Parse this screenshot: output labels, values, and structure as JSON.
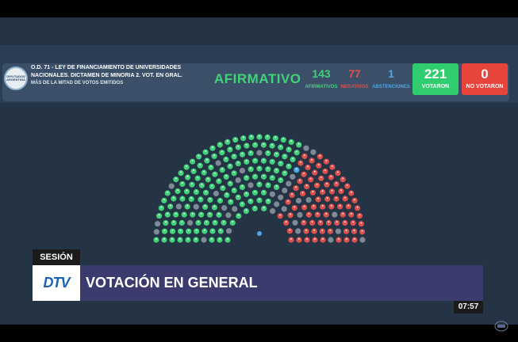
{
  "header": {
    "law_title": "O.D. 71 - LEY DE FINANCIAMIENTO DE UNIVERSIDADES NACIONALES. DICTAMEN DE MINORIA 2. VOT. EN GRAL.",
    "majority_label": "Más de la mitad de votos emitidos",
    "logo_text": "DIPUTADOS ARGENTINA"
  },
  "result": {
    "text": "AFIRMATIVO"
  },
  "counts": {
    "afirmativos": {
      "value": "143",
      "label": "AFIRMATIVOS"
    },
    "negativos": {
      "value": "77",
      "label": "NEGATIVOS"
    },
    "abstenciones": {
      "value": "1",
      "label": "ABSTENCIONES"
    },
    "votaron": {
      "value": "221",
      "label": "VOTARON"
    },
    "no_votaron": {
      "value": "0",
      "label": "NO VOTARON"
    }
  },
  "seats": {
    "total": 257,
    "afirmativos": 143,
    "negativos": 77,
    "abstenciones": 1,
    "ausentes": 36
  },
  "lower_third": {
    "section": "SESIÓN",
    "channel_logo": "DTV",
    "title": "VOTACIÓN EN GENERAL",
    "clock": "07:57"
  },
  "colors": {
    "afirmativo": "#41d27a",
    "negativo": "#e0514d",
    "abstencion": "#4ea6e6",
    "ausente": "#7f8a96",
    "background": "#243445"
  },
  "icons": [
    "seat-icon",
    "diputados-logo-icon",
    "dtv-logo-icon",
    "watermark-icon"
  ]
}
